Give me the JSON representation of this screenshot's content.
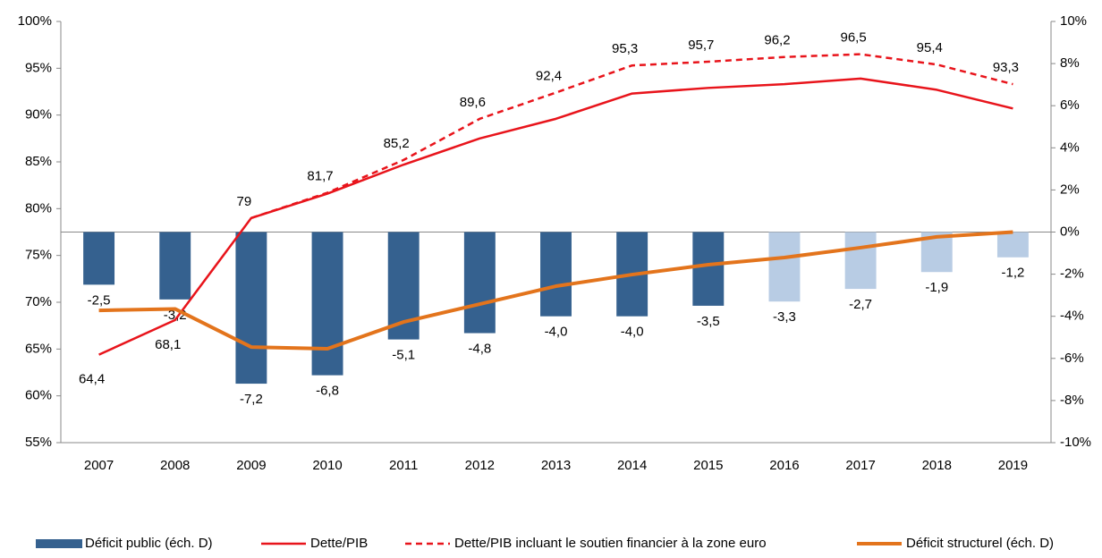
{
  "chart_data": {
    "type": "combo",
    "categories": [
      "2007",
      "2008",
      "2009",
      "2010",
      "2011",
      "2012",
      "2013",
      "2014",
      "2015",
      "2016",
      "2017",
      "2018",
      "2019"
    ],
    "ylim": [
      55,
      100
    ],
    "yticks": [
      {
        "value": 55,
        "label": "55%"
      },
      {
        "value": 60,
        "label": "60%"
      },
      {
        "value": 65,
        "label": "65%"
      },
      {
        "value": 70,
        "label": "70%"
      },
      {
        "value": 75,
        "label": "75%"
      },
      {
        "value": 80,
        "label": "80%"
      },
      {
        "value": 85,
        "label": "85%"
      },
      {
        "value": 90,
        "label": "90%"
      },
      {
        "value": 95,
        "label": "95%"
      },
      {
        "value": 100,
        "label": "100%"
      }
    ],
    "y2lim": [
      -10,
      10
    ],
    "y2ticks": [
      {
        "value": -10,
        "label": "-10%"
      },
      {
        "value": -8,
        "label": "-8%"
      },
      {
        "value": -6,
        "label": "-6%"
      },
      {
        "value": -4,
        "label": "-4%"
      },
      {
        "value": -2,
        "label": "-2%"
      },
      {
        "value": 0,
        "label": "0%"
      },
      {
        "value": 2,
        "label": "2%"
      },
      {
        "value": 4,
        "label": "4%"
      },
      {
        "value": 6,
        "label": "6%"
      },
      {
        "value": 8,
        "label": "8%"
      },
      {
        "value": 10,
        "label": "10%"
      }
    ],
    "legend": "bottom",
    "series": [
      {
        "name": "Déficit public (éch. D)",
        "type": "bar",
        "axis": "y2",
        "color": "#35618f",
        "colors": [
          "#35618f",
          "#35618f",
          "#35618f",
          "#35618f",
          "#35618f",
          "#35618f",
          "#35618f",
          "#35618f",
          "#35618f",
          "#b8cce4",
          "#b8cce4",
          "#b8cce4",
          "#b8cce4"
        ],
        "values": [
          -2.5,
          -3.2,
          -7.2,
          -6.8,
          -5.1,
          -4.8,
          -4.0,
          -4.0,
          -3.5,
          -3.3,
          -2.7,
          -1.9,
          -1.2
        ],
        "value_labels": [
          "-2,5",
          "-3,2",
          "-7,2",
          "-6,8",
          "-5,1",
          "-4,8",
          "-4,0",
          "-4,0",
          "-3,5",
          "-3,3",
          "-2,7",
          "-1,9",
          "-1,2"
        ]
      },
      {
        "name": "Dette/PIB",
        "type": "line",
        "color": "#e8141b",
        "values": [
          64.4,
          68.1,
          79,
          81.6,
          84.7,
          87.5,
          89.6,
          92.3,
          92.9,
          93.3,
          93.9,
          92.7,
          90.7
        ],
        "value_labels": [
          "64,4",
          "68,1",
          "79",
          null,
          null,
          null,
          null,
          null,
          null,
          null,
          null,
          null,
          null
        ]
      },
      {
        "name": "Dette/PIB incluant le soutien financier à la zone euro",
        "type": "line",
        "dashed": true,
        "color": "#e8141b",
        "values": [
          null,
          null,
          79,
          81.7,
          85.2,
          89.6,
          92.4,
          95.3,
          95.7,
          96.2,
          96.5,
          95.4,
          93.3
        ],
        "value_labels": [
          null,
          null,
          null,
          "81,7",
          "85,2",
          "89,6",
          "92,4",
          "95,3",
          "95,7",
          "96,2",
          "96,5",
          "95,4",
          "93,3"
        ]
      },
      {
        "name": "Déficit structurel (éch. D)",
        "type": "line",
        "axis": "y2",
        "color": "#e3741c",
        "width": 4,
        "values": [
          -3.72,
          -3.65,
          -5.46,
          -5.54,
          -4.27,
          -3.42,
          -2.57,
          -2.02,
          -1.55,
          -1.21,
          -0.74,
          -0.23,
          0.0
        ]
      }
    ]
  }
}
